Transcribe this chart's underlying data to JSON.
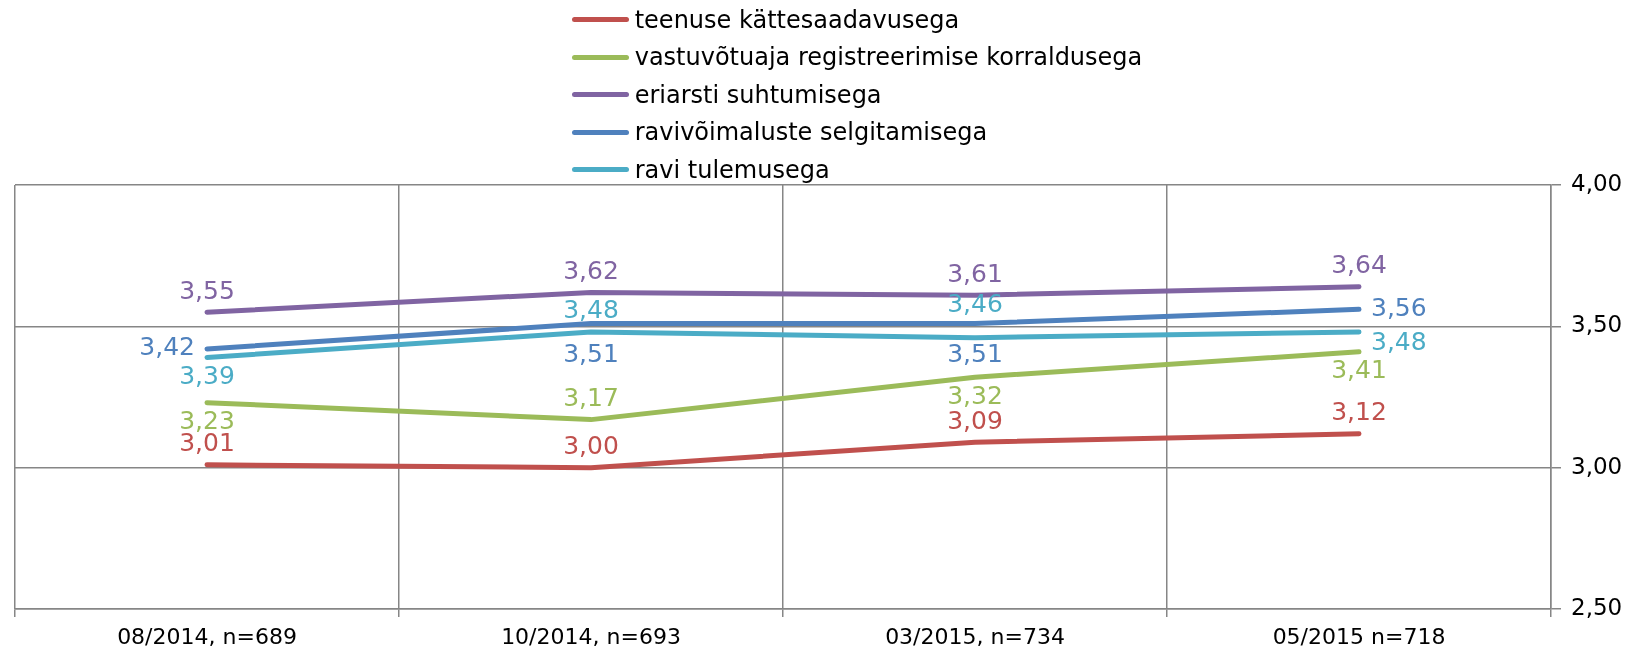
{
  "chart_data": {
    "type": "line",
    "categories": [
      "08/2014, n=689",
      "10/2014, n=693",
      "03/2015, n=734",
      "05/2015 n=718"
    ],
    "series": [
      {
        "name": "teenuse kättesaadavusega",
        "color": "#c0504d",
        "values": [
          3.01,
          3.0,
          3.09,
          3.12
        ],
        "value_labels": [
          "3,01",
          "3,00",
          "3,09",
          "3,12"
        ]
      },
      {
        "name": "vastuvõtuaja registreerimise korraldusega",
        "color": "#9bbb59",
        "values": [
          3.23,
          3.17,
          3.32,
          3.41
        ],
        "value_labels": [
          "3,23",
          "3,17",
          "3,32",
          "3,41"
        ]
      },
      {
        "name": "eriarsti suhtumisega",
        "color": "#8064a2",
        "values": [
          3.55,
          3.62,
          3.61,
          3.64
        ],
        "value_labels": [
          "3,55",
          "3,62",
          "3,61",
          "3,64"
        ]
      },
      {
        "name": "ravivõimaluste selgitamisega",
        "color": "#4f81bd",
        "values": [
          3.42,
          3.51,
          3.51,
          3.56
        ],
        "value_labels": [
          "3,42",
          "3,51",
          "3,51",
          "3,56"
        ]
      },
      {
        "name": "ravi tulemusega",
        "color": "#4bacc6",
        "values": [
          3.39,
          3.48,
          3.46,
          3.48
        ],
        "value_labels": [
          "3,39",
          "3,48",
          "3,46",
          "3,48"
        ]
      }
    ],
    "ylim": [
      2.5,
      4.0
    ],
    "yticks": [
      {
        "value": 2.5,
        "label": "2,50"
      },
      {
        "value": 3.0,
        "label": "3,00"
      },
      {
        "value": 3.5,
        "label": "3,50"
      },
      {
        "value": 4.0,
        "label": "4,00"
      }
    ],
    "grid": true,
    "legend": "top",
    "marker": "none",
    "line_style": "solid"
  }
}
